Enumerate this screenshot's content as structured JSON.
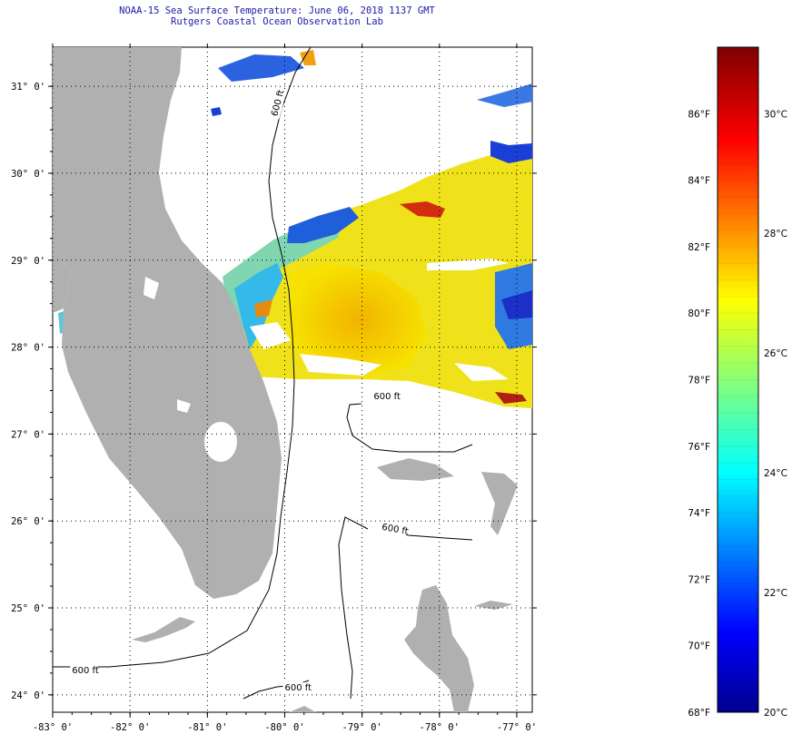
{
  "header": {
    "title": "NOAA-15 Sea Surface Temperature:  June 06, 2018 1137 GMT",
    "subtitle": "Rutgers Coastal Ocean Observation Lab"
  },
  "map": {
    "lon_range": [
      -83,
      -76.8
    ],
    "lat_range": [
      23.8,
      31.45
    ],
    "lon_ticks": [
      {
        "value": -83,
        "label": "-83° 0'"
      },
      {
        "value": -82,
        "label": "-82° 0'"
      },
      {
        "value": -81,
        "label": "-81° 0'"
      },
      {
        "value": -80,
        "label": "-80° 0'"
      },
      {
        "value": -79,
        "label": "-79° 0'"
      },
      {
        "value": -78,
        "label": "-78° 0'"
      },
      {
        "value": -77,
        "label": "-77° 0'"
      }
    ],
    "lat_ticks": [
      {
        "value": 31,
        "label": "31° 0'"
      },
      {
        "value": 30,
        "label": "30° 0'"
      },
      {
        "value": 29,
        "label": "29° 0'"
      },
      {
        "value": 28,
        "label": "28° 0'"
      },
      {
        "value": 27,
        "label": "27° 0'"
      },
      {
        "value": 26,
        "label": "26° 0'"
      },
      {
        "value": 25,
        "label": "25° 0'"
      },
      {
        "value": 24,
        "label": "24° 0'"
      }
    ],
    "contour_label": "600 ft",
    "land_color": "#b0b0b0",
    "contour_labels": [
      {
        "lon": -80.1,
        "lat": 30.65,
        "angle": -75
      },
      {
        "lon": -78.85,
        "lat": 27.4,
        "angle": 0
      },
      {
        "lon": -78.75,
        "lat": 25.9,
        "angle": 10
      },
      {
        "lon": -82.75,
        "lat": 24.25,
        "angle": 0
      },
      {
        "lon": -80,
        "lat": 24.05,
        "angle": 0
      }
    ]
  },
  "colorbar": {
    "fahrenheit_labels": [
      {
        "value": 68,
        "label": "68°F"
      },
      {
        "value": 70,
        "label": "70°F"
      },
      {
        "value": 72,
        "label": "72°F"
      },
      {
        "value": 74,
        "label": "74°F"
      },
      {
        "value": 76,
        "label": "76°F"
      },
      {
        "value": 78,
        "label": "78°F"
      },
      {
        "value": 80,
        "label": "80°F"
      },
      {
        "value": 82,
        "label": "82°F"
      },
      {
        "value": 84,
        "label": "84°F"
      },
      {
        "value": 86,
        "label": "86°F"
      }
    ],
    "celsius_labels": [
      {
        "value": 20,
        "label": "20°C"
      },
      {
        "value": 22,
        "label": "22°C"
      },
      {
        "value": 24,
        "label": "24°C"
      },
      {
        "value": 26,
        "label": "26°C"
      },
      {
        "value": 28,
        "label": "28°C"
      },
      {
        "value": 30,
        "label": "30°C"
      }
    ],
    "range_f": [
      68,
      88
    ]
  }
}
